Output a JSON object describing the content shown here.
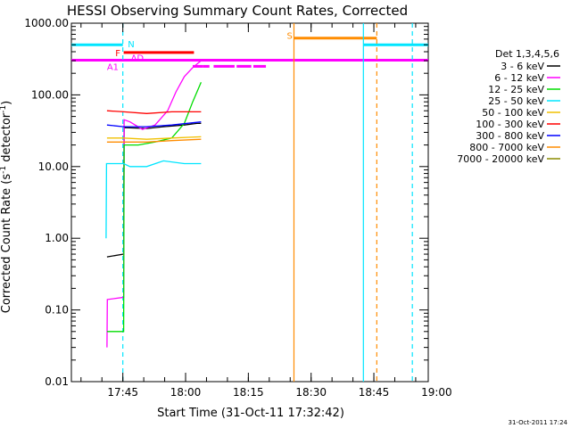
{
  "chart_data": {
    "type": "line",
    "title": "HESSI Observing Summary Count Rates, Corrected",
    "xlabel": "Start Time (31-Oct-11 17:32:42)",
    "ylabel_parts": [
      "Corrected Count Rate (s",
      "-1",
      " detector",
      "-1",
      ")"
    ],
    "y_scale": "log",
    "ylim": [
      0.01,
      1000
    ],
    "xlim_minutes": [
      0,
      85.3
    ],
    "x_ticks": [
      {
        "label": "17:45",
        "min": 12.3
      },
      {
        "label": "18:00",
        "min": 27.3
      },
      {
        "label": "18:15",
        "min": 42.3
      },
      {
        "label": "18:30",
        "min": 57.3
      },
      {
        "label": "18:45",
        "min": 72.3
      },
      {
        "label": "19:00",
        "min": 87.3
      }
    ],
    "y_ticks": [
      {
        "label": "0.01",
        "value": 0.01
      },
      {
        "label": "0.10",
        "value": 0.1
      },
      {
        "label": "1.00",
        "value": 1
      },
      {
        "label": "10.00",
        "value": 10
      },
      {
        "label": "100.00",
        "value": 100
      },
      {
        "label": "1000.00",
        "value": 1000
      }
    ],
    "legend_title": "Det 1,3,4,5,6",
    "series": [
      {
        "name": "3 - 6 keV",
        "color": "#000000",
        "points": [
          [
            8.5,
            0.55
          ],
          [
            12.5,
            0.6
          ],
          [
            12.6,
            35
          ],
          [
            18,
            34
          ],
          [
            22,
            36
          ],
          [
            27,
            38
          ],
          [
            30,
            40
          ],
          [
            31,
            40
          ]
        ]
      },
      {
        "name": "6 - 12 keV",
        "color": "#ff00ff",
        "points": [
          [
            8.5,
            0.03
          ],
          [
            8.6,
            0.14
          ],
          [
            12.5,
            0.15
          ],
          [
            12.6,
            45
          ],
          [
            14,
            42
          ],
          [
            17,
            33
          ],
          [
            20,
            38
          ],
          [
            23,
            60
          ],
          [
            25,
            110
          ],
          [
            27,
            180
          ],
          [
            29,
            240
          ],
          [
            31,
            300
          ]
        ]
      },
      {
        "name": "12 - 25 keV",
        "color": "#00dd00",
        "points": [
          [
            8.5,
            0.05
          ],
          [
            12.5,
            0.05
          ],
          [
            12.6,
            20
          ],
          [
            16,
            20
          ],
          [
            20,
            22
          ],
          [
            24,
            25
          ],
          [
            27,
            40
          ],
          [
            29,
            80
          ],
          [
            31,
            150
          ]
        ]
      },
      {
        "name": "25 - 50 keV",
        "color": "#00e5ff",
        "points": [
          [
            8.3,
            1
          ],
          [
            8.4,
            11
          ],
          [
            12.5,
            11
          ],
          [
            14,
            10
          ],
          [
            18,
            10
          ],
          [
            22,
            12
          ],
          [
            27,
            11
          ],
          [
            31,
            11
          ]
        ]
      },
      {
        "name": "50 - 100 keV",
        "color": "#f0c000",
        "points": [
          [
            8.5,
            25
          ],
          [
            12.5,
            25
          ],
          [
            18,
            24
          ],
          [
            24,
            25
          ],
          [
            31,
            26
          ]
        ]
      },
      {
        "name": "100 - 300 keV",
        "color": "#ff0000",
        "points": [
          [
            8.5,
            60
          ],
          [
            12.5,
            58
          ],
          [
            18,
            55
          ],
          [
            24,
            58
          ],
          [
            31,
            58
          ]
        ]
      },
      {
        "name": "300 - 800 keV",
        "color": "#0000ff",
        "points": [
          [
            8.5,
            38
          ],
          [
            12.5,
            36
          ],
          [
            18,
            36
          ],
          [
            24,
            38
          ],
          [
            31,
            42
          ]
        ]
      },
      {
        "name": "800 - 7000 keV",
        "color": "#ff8c00",
        "points": [
          [
            8.5,
            22
          ],
          [
            12.5,
            22
          ],
          [
            18,
            22
          ],
          [
            24,
            23
          ],
          [
            31,
            24
          ]
        ]
      },
      {
        "name": "7000 - 20000 keV",
        "color": "#8b8b00",
        "points": []
      }
    ],
    "annotations": [
      {
        "text": "N",
        "color": "#00e5ff",
        "x_min": 13.5,
        "y_value": 520
      },
      {
        "text": "F",
        "color": "#ff0000",
        "x_min": 10.5,
        "y_value": 390
      },
      {
        "text": "AD",
        "color": "#ff00ff",
        "x_min": 14.2,
        "y_value": 330
      },
      {
        "text": "A1",
        "color": "#ff00ff",
        "x_min": 8.5,
        "y_value": 250
      },
      {
        "text": "S",
        "color": "#ff8c00",
        "x_min": 51.5,
        "y_value": 680
      }
    ],
    "flag_bars": [
      {
        "color": "#00e5ff",
        "y_value": 500,
        "segments": [
          [
            0,
            12.3
          ],
          [
            69.8,
            85.3
          ]
        ]
      },
      {
        "color": "#ff0000",
        "y_value": 390,
        "segments": [
          [
            12.5,
            29.3
          ]
        ]
      },
      {
        "color": "#ff8c00",
        "y_value": 620,
        "segments": [
          [
            53.2,
            73
          ]
        ]
      },
      {
        "color": "#ff00ff",
        "y_value": 305,
        "segments": [
          [
            0,
            85.3
          ]
        ]
      },
      {
        "color": "#ff00ff",
        "y_value": 250,
        "segments": [
          [
            29,
            31.5
          ],
          [
            31.5,
            33
          ],
          [
            34,
            39
          ],
          [
            39.5,
            43
          ],
          [
            43.5,
            46.5
          ]
        ]
      }
    ],
    "vlines": [
      {
        "x_min": 12.3,
        "color": "#00e5ff",
        "dashed": true
      },
      {
        "x_min": 53.2,
        "color": "#ff8c00",
        "dashed": false
      },
      {
        "x_min": 69.8,
        "color": "#00e5ff",
        "dashed": false
      },
      {
        "x_min": 73.0,
        "color": "#ff8c00",
        "dashed": true
      },
      {
        "x_min": 81.5,
        "color": "#00e5ff",
        "dashed": true
      }
    ]
  },
  "footer": {
    "timestamp": "31-Oct-2011 17:24"
  }
}
